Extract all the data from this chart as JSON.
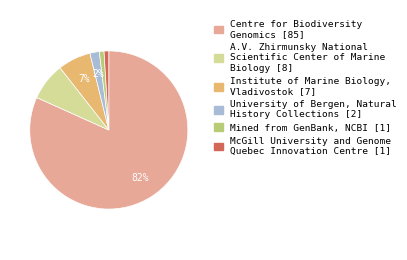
{
  "labels": [
    "Centre for Biodiversity\nGenomics [85]",
    "A.V. Zhirmunsky National\nScientific Center of Marine\nBiology [8]",
    "Institute of Marine Biology,\nVladivostok [7]",
    "University of Bergen, Natural\nHistory Collections [2]",
    "Mined from GenBank, NCBI [1]",
    "McGill University and Genome\nQuebec Innovation Centre [1]"
  ],
  "values": [
    85,
    8,
    7,
    2,
    1,
    1
  ],
  "colors": [
    "#e8a898",
    "#d4dc98",
    "#e8b870",
    "#a8bcd8",
    "#b8cc78",
    "#d46858"
  ],
  "pct_show": [
    true,
    false,
    true,
    true,
    false,
    false
  ],
  "pct_distance": 0.72,
  "startangle": 90,
  "counterclock": false,
  "background_color": "#ffffff",
  "font_size": 7.0,
  "legend_fontsize": 6.8
}
